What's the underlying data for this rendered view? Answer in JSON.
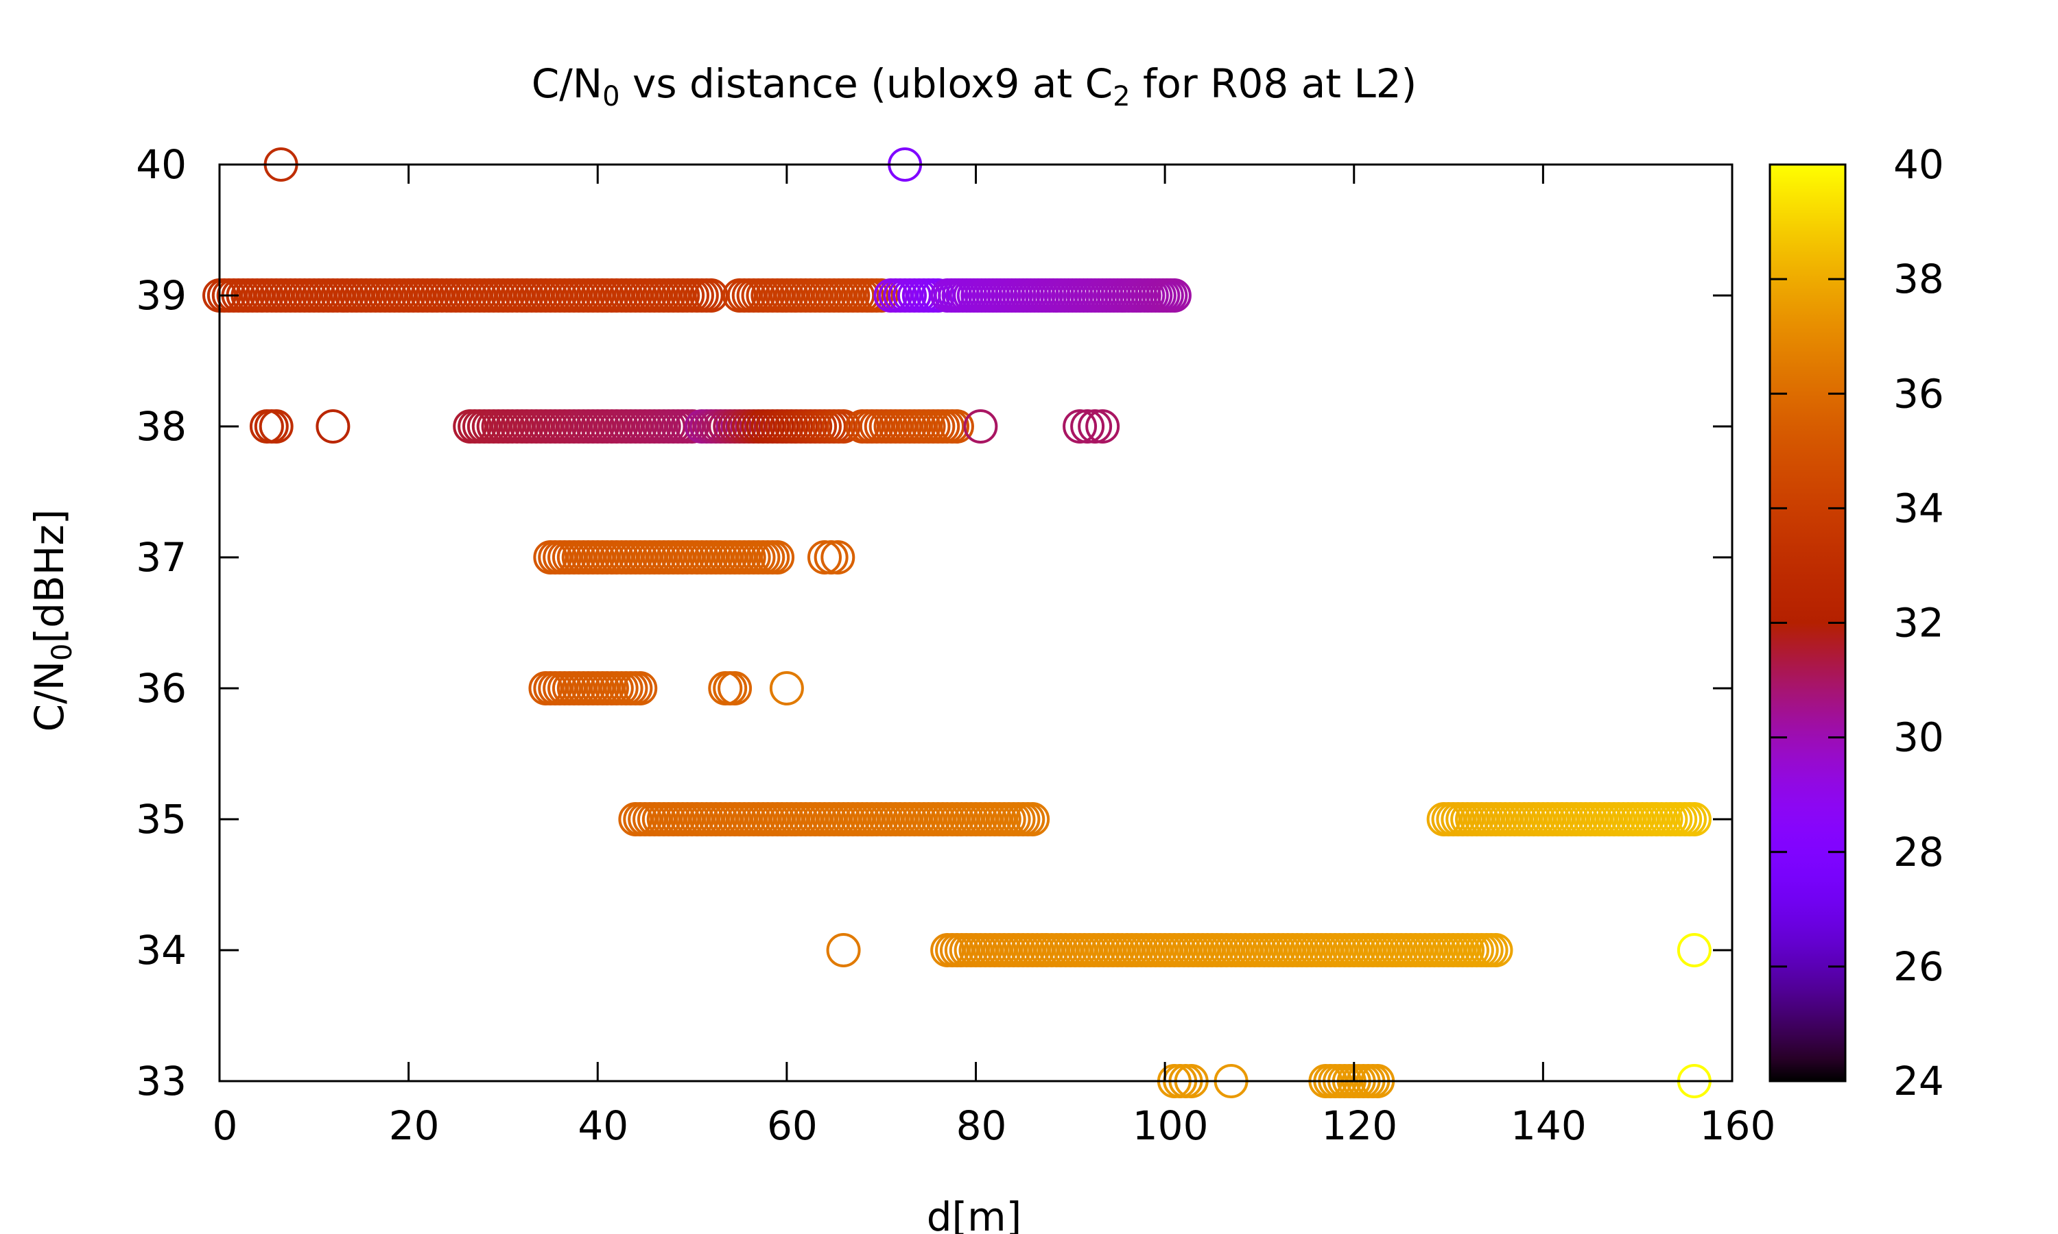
{
  "chart_data": {
    "type": "scatter",
    "title": {
      "parts": [
        "C/N",
        "0",
        " vs distance (ublox9 at C",
        "2",
        " for R08 at L2)"
      ]
    },
    "xlabel": "d[m]",
    "ylabel": {
      "parts": [
        "C/N",
        "0",
        "[dBHz]"
      ]
    },
    "xlim": [
      0,
      160
    ],
    "ylim": [
      33,
      40
    ],
    "xticks": [
      "0",
      "20",
      "40",
      "60",
      "80",
      "100",
      "120",
      "140",
      "160"
    ],
    "yticks": [
      "33",
      "34",
      "35",
      "36",
      "37",
      "38",
      "39",
      "40"
    ],
    "colorbar": {
      "range": [
        24,
        40
      ],
      "ticks": [
        "24",
        "26",
        "28",
        "30",
        "32",
        "34",
        "36",
        "38",
        "40"
      ],
      "palette": "black-purple-red-orange-yellow (gnuplot default)"
    },
    "marker": "open-circle",
    "series": [
      {
        "y": 40,
        "segments": [
          {
            "x_from": 6.5,
            "x_to": 6.5,
            "step": 1,
            "c_from": 33,
            "c_to": 33
          },
          {
            "x_from": 72.5,
            "x_to": 72.5,
            "step": 1,
            "c_from": 28,
            "c_to": 28
          }
        ]
      },
      {
        "y": 39,
        "segments": [
          {
            "x_from": 0,
            "x_to": 52,
            "step": 0.5,
            "c_from": 33.3,
            "c_to": 33.6
          },
          {
            "x_from": 55,
            "x_to": 70,
            "step": 0.5,
            "c_from": 33.8,
            "c_to": 34.3
          },
          {
            "x_from": 71,
            "x_to": 76,
            "step": 0.5,
            "c_from": 29,
            "c_to": 28.5
          },
          {
            "x_from": 77,
            "x_to": 101,
            "step": 0.4,
            "c_from": 29.2,
            "c_to": 30.2
          }
        ]
      },
      {
        "y": 38,
        "segments": [
          {
            "x_from": 5,
            "x_to": 6,
            "step": 0.5,
            "c_from": 33,
            "c_to": 33
          },
          {
            "x_from": 12,
            "x_to": 12,
            "step": 1,
            "c_from": 32.5,
            "c_to": 32.5
          },
          {
            "x_from": 26.5,
            "x_to": 50,
            "step": 0.5,
            "c_from": 31.5,
            "c_to": 31
          },
          {
            "x_from": 51,
            "x_to": 66,
            "step": 0.5,
            "c_from": 30.5,
            "c_to": 34
          },
          {
            "x_from": 68,
            "x_to": 78,
            "step": 0.5,
            "c_from": 34.5,
            "c_to": 35
          },
          {
            "x_from": 80.5,
            "x_to": 80.5,
            "step": 1,
            "c_from": 31,
            "c_to": 31
          },
          {
            "x_from": 91,
            "x_to": 93.5,
            "step": 0.8,
            "c_from": 31,
            "c_to": 31
          }
        ]
      },
      {
        "y": 37,
        "segments": [
          {
            "x_from": 35,
            "x_to": 59,
            "step": 0.5,
            "c_from": 35.2,
            "c_to": 35.6
          },
          {
            "x_from": 64,
            "x_to": 65.5,
            "step": 0.7,
            "c_from": 35.6,
            "c_to": 35.6
          }
        ]
      },
      {
        "y": 36,
        "segments": [
          {
            "x_from": 34.5,
            "x_to": 44.5,
            "step": 0.5,
            "c_from": 35.3,
            "c_to": 35.5
          },
          {
            "x_from": 53.5,
            "x_to": 54.5,
            "step": 0.5,
            "c_from": 35.8,
            "c_to": 35.8
          },
          {
            "x_from": 60,
            "x_to": 60,
            "step": 1,
            "c_from": 36.5,
            "c_to": 36.5
          }
        ]
      },
      {
        "y": 35,
        "segments": [
          {
            "x_from": 44,
            "x_to": 86,
            "step": 0.5,
            "c_from": 35.8,
            "c_to": 36.5
          },
          {
            "x_from": 129.5,
            "x_to": 156,
            "step": 0.5,
            "c_from": 38,
            "c_to": 38.6
          }
        ]
      },
      {
        "y": 34,
        "segments": [
          {
            "x_from": 66,
            "x_to": 66,
            "step": 1,
            "c_from": 36.5,
            "c_to": 36.5
          },
          {
            "x_from": 77,
            "x_to": 135,
            "step": 0.5,
            "c_from": 37,
            "c_to": 37.8
          },
          {
            "x_from": 156,
            "x_to": 156,
            "step": 1,
            "c_from": 40,
            "c_to": 40
          }
        ]
      },
      {
        "y": 33,
        "segments": [
          {
            "x_from": 101,
            "x_to": 103,
            "step": 0.6,
            "c_from": 37.5,
            "c_to": 37.5
          },
          {
            "x_from": 107,
            "x_to": 107,
            "step": 1,
            "c_from": 37.5,
            "c_to": 37.5
          },
          {
            "x_from": 117,
            "x_to": 122.5,
            "step": 0.5,
            "c_from": 37.5,
            "c_to": 37.5
          },
          {
            "x_from": 156,
            "x_to": 156,
            "step": 1,
            "c_from": 40,
            "c_to": 40
          }
        ]
      }
    ]
  }
}
